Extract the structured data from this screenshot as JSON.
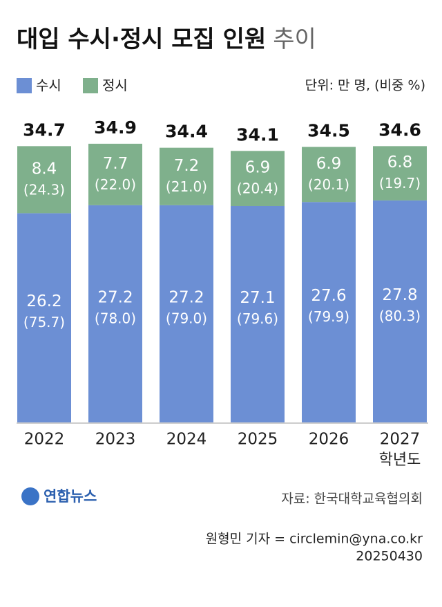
{
  "chart_data": {
    "type": "stacked-bar",
    "title": "대입 수시·정시 모집 인원",
    "title_suffix": "추이",
    "unit": "단위: 만 명, (비중 %)",
    "categories": [
      "2022",
      "2023",
      "2024",
      "2025",
      "2026",
      "2027"
    ],
    "x_label": "학년도",
    "series": [
      {
        "name": "수시",
        "color": "#6c8fd4",
        "values": [
          26.2,
          27.2,
          27.2,
          27.1,
          27.6,
          27.8
        ],
        "shares": [
          75.7,
          78.0,
          79.0,
          79.6,
          79.9,
          80.3
        ],
        "share_labels": [
          "(75.7)",
          "(78.0)",
          "(79.0)",
          "(79.6)",
          "(79.9)",
          "(80.3)"
        ]
      },
      {
        "name": "정시",
        "color": "#7fb08c",
        "values": [
          8.4,
          7.7,
          7.2,
          6.9,
          6.9,
          6.8
        ],
        "shares": [
          24.3,
          22.0,
          21.0,
          20.4,
          20.1,
          19.7
        ],
        "share_labels": [
          "(24.3)",
          "(22.0)",
          "(21.0)",
          "(20.4)",
          "(20.1)",
          "(19.7)"
        ]
      }
    ],
    "totals": [
      34.7,
      34.9,
      34.4,
      34.1,
      34.5,
      34.6
    ],
    "source": "자료: 한국대학교육협의회",
    "logo": "연합뉴스",
    "credit": "원형민 기자 = circlemin@yna.co.kr",
    "date": "20250430"
  }
}
